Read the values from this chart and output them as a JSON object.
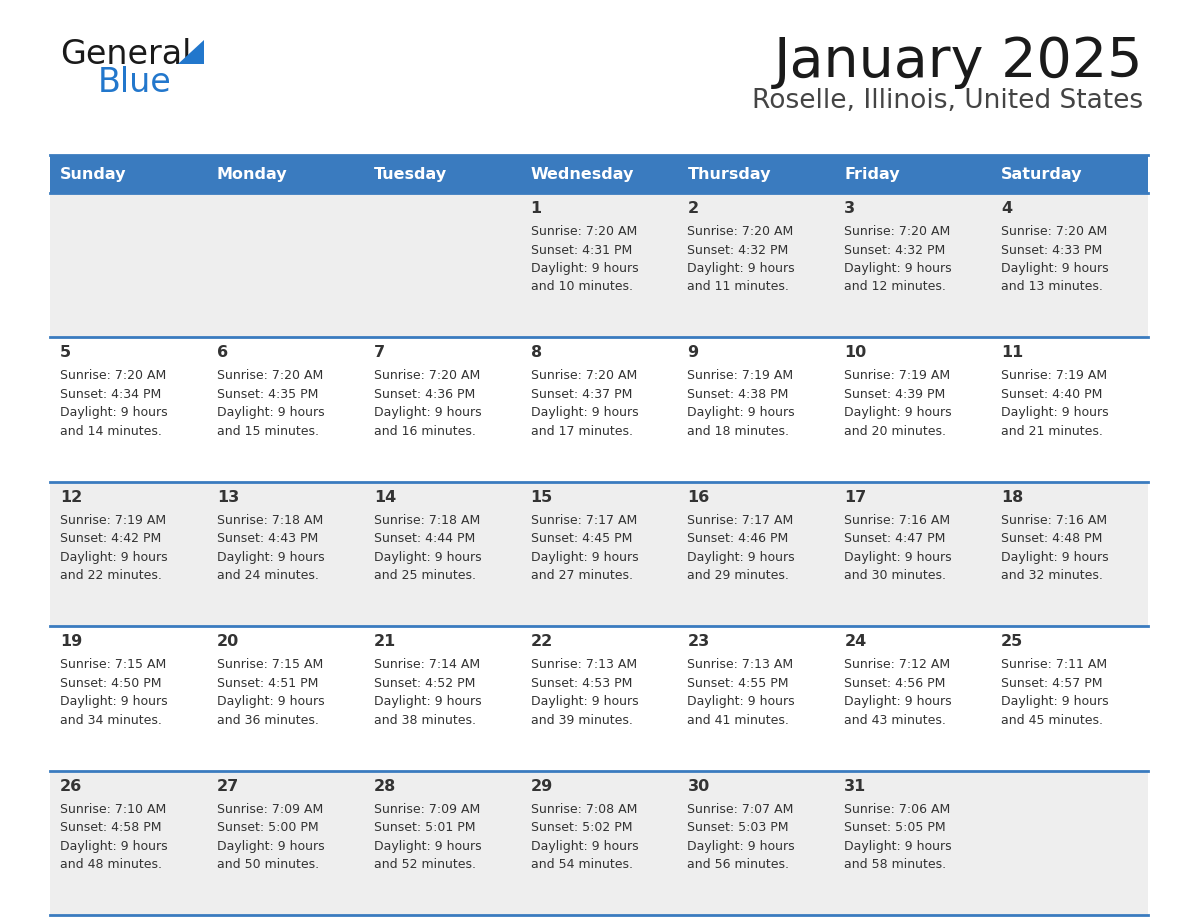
{
  "title": "January 2025",
  "subtitle": "Roselle, Illinois, United States",
  "days_of_week": [
    "Sunday",
    "Monday",
    "Tuesday",
    "Wednesday",
    "Thursday",
    "Friday",
    "Saturday"
  ],
  "header_bg": "#3a7bbf",
  "header_text_color": "#ffffff",
  "row_bg_odd": "#eeeeee",
  "row_bg_even": "#ffffff",
  "cell_text_color": "#333333",
  "day_num_color": "#333333",
  "separator_color": "#3a7bbf",
  "title_color": "#1a1a1a",
  "subtitle_color": "#444444",
  "logo_general_color": "#1a1a1a",
  "logo_blue_color": "#2277cc",
  "logo_triangle_color": "#2277cc",
  "calendar_data": [
    [
      null,
      null,
      null,
      {
        "day": 1,
        "sunrise": "7:20 AM",
        "sunset": "4:31 PM",
        "daylight": "9 hours and 10 minutes."
      },
      {
        "day": 2,
        "sunrise": "7:20 AM",
        "sunset": "4:32 PM",
        "daylight": "9 hours and 11 minutes."
      },
      {
        "day": 3,
        "sunrise": "7:20 AM",
        "sunset": "4:32 PM",
        "daylight": "9 hours and 12 minutes."
      },
      {
        "day": 4,
        "sunrise": "7:20 AM",
        "sunset": "4:33 PM",
        "daylight": "9 hours and 13 minutes."
      }
    ],
    [
      {
        "day": 5,
        "sunrise": "7:20 AM",
        "sunset": "4:34 PM",
        "daylight": "9 hours and 14 minutes."
      },
      {
        "day": 6,
        "sunrise": "7:20 AM",
        "sunset": "4:35 PM",
        "daylight": "9 hours and 15 minutes."
      },
      {
        "day": 7,
        "sunrise": "7:20 AM",
        "sunset": "4:36 PM",
        "daylight": "9 hours and 16 minutes."
      },
      {
        "day": 8,
        "sunrise": "7:20 AM",
        "sunset": "4:37 PM",
        "daylight": "9 hours and 17 minutes."
      },
      {
        "day": 9,
        "sunrise": "7:19 AM",
        "sunset": "4:38 PM",
        "daylight": "9 hours and 18 minutes."
      },
      {
        "day": 10,
        "sunrise": "7:19 AM",
        "sunset": "4:39 PM",
        "daylight": "9 hours and 20 minutes."
      },
      {
        "day": 11,
        "sunrise": "7:19 AM",
        "sunset": "4:40 PM",
        "daylight": "9 hours and 21 minutes."
      }
    ],
    [
      {
        "day": 12,
        "sunrise": "7:19 AM",
        "sunset": "4:42 PM",
        "daylight": "9 hours and 22 minutes."
      },
      {
        "day": 13,
        "sunrise": "7:18 AM",
        "sunset": "4:43 PM",
        "daylight": "9 hours and 24 minutes."
      },
      {
        "day": 14,
        "sunrise": "7:18 AM",
        "sunset": "4:44 PM",
        "daylight": "9 hours and 25 minutes."
      },
      {
        "day": 15,
        "sunrise": "7:17 AM",
        "sunset": "4:45 PM",
        "daylight": "9 hours and 27 minutes."
      },
      {
        "day": 16,
        "sunrise": "7:17 AM",
        "sunset": "4:46 PM",
        "daylight": "9 hours and 29 minutes."
      },
      {
        "day": 17,
        "sunrise": "7:16 AM",
        "sunset": "4:47 PM",
        "daylight": "9 hours and 30 minutes."
      },
      {
        "day": 18,
        "sunrise": "7:16 AM",
        "sunset": "4:48 PM",
        "daylight": "9 hours and 32 minutes."
      }
    ],
    [
      {
        "day": 19,
        "sunrise": "7:15 AM",
        "sunset": "4:50 PM",
        "daylight": "9 hours and 34 minutes."
      },
      {
        "day": 20,
        "sunrise": "7:15 AM",
        "sunset": "4:51 PM",
        "daylight": "9 hours and 36 minutes."
      },
      {
        "day": 21,
        "sunrise": "7:14 AM",
        "sunset": "4:52 PM",
        "daylight": "9 hours and 38 minutes."
      },
      {
        "day": 22,
        "sunrise": "7:13 AM",
        "sunset": "4:53 PM",
        "daylight": "9 hours and 39 minutes."
      },
      {
        "day": 23,
        "sunrise": "7:13 AM",
        "sunset": "4:55 PM",
        "daylight": "9 hours and 41 minutes."
      },
      {
        "day": 24,
        "sunrise": "7:12 AM",
        "sunset": "4:56 PM",
        "daylight": "9 hours and 43 minutes."
      },
      {
        "day": 25,
        "sunrise": "7:11 AM",
        "sunset": "4:57 PM",
        "daylight": "9 hours and 45 minutes."
      }
    ],
    [
      {
        "day": 26,
        "sunrise": "7:10 AM",
        "sunset": "4:58 PM",
        "daylight": "9 hours and 48 minutes."
      },
      {
        "day": 27,
        "sunrise": "7:09 AM",
        "sunset": "5:00 PM",
        "daylight": "9 hours and 50 minutes."
      },
      {
        "day": 28,
        "sunrise": "7:09 AM",
        "sunset": "5:01 PM",
        "daylight": "9 hours and 52 minutes."
      },
      {
        "day": 29,
        "sunrise": "7:08 AM",
        "sunset": "5:02 PM",
        "daylight": "9 hours and 54 minutes."
      },
      {
        "day": 30,
        "sunrise": "7:07 AM",
        "sunset": "5:03 PM",
        "daylight": "9 hours and 56 minutes."
      },
      {
        "day": 31,
        "sunrise": "7:06 AM",
        "sunset": "5:05 PM",
        "daylight": "9 hours and 58 minutes."
      },
      null
    ]
  ]
}
